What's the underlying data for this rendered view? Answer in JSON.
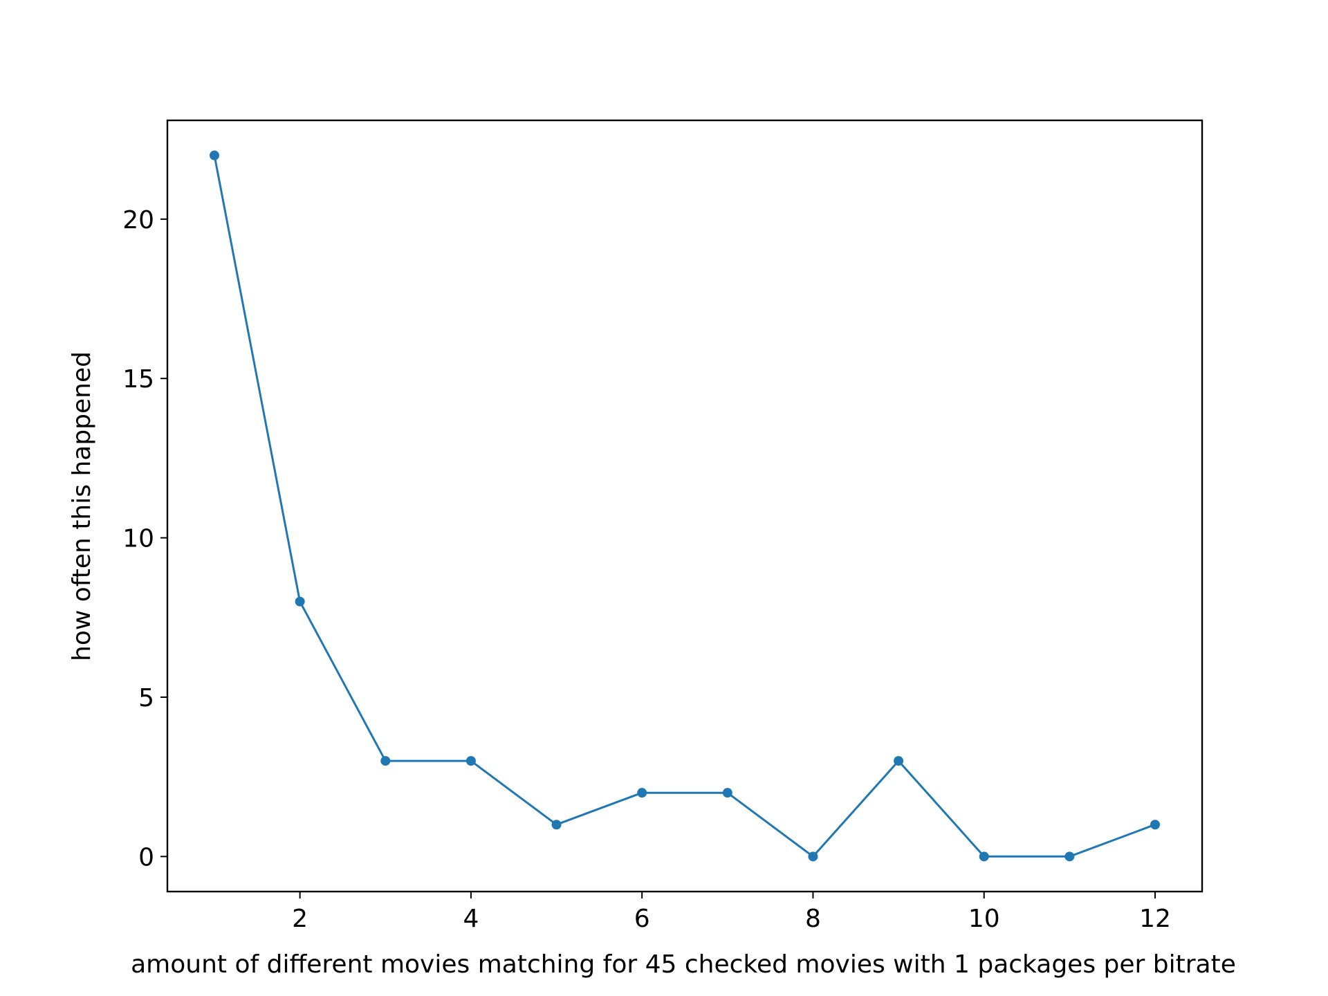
{
  "chart_data": {
    "type": "line",
    "x": [
      1,
      2,
      3,
      4,
      5,
      6,
      7,
      8,
      9,
      10,
      11,
      12
    ],
    "series": [
      {
        "values": [
          22,
          8,
          3,
          3,
          1,
          2,
          2,
          0,
          3,
          0,
          0,
          1
        ]
      }
    ],
    "xlabel": "amount of different movies matching for 45 checked movies with 1 packages per bitrate",
    "ylabel": "how often this happened",
    "xlim": [
      0.45,
      12.55
    ],
    "ylim": [
      -1.1,
      23.1
    ],
    "xticks": [
      2,
      4,
      6,
      8,
      10,
      12
    ],
    "yticks": [
      0,
      5,
      10,
      15,
      20
    ],
    "line_color": "#1f77b4",
    "marker": "circle",
    "grid": false
  }
}
